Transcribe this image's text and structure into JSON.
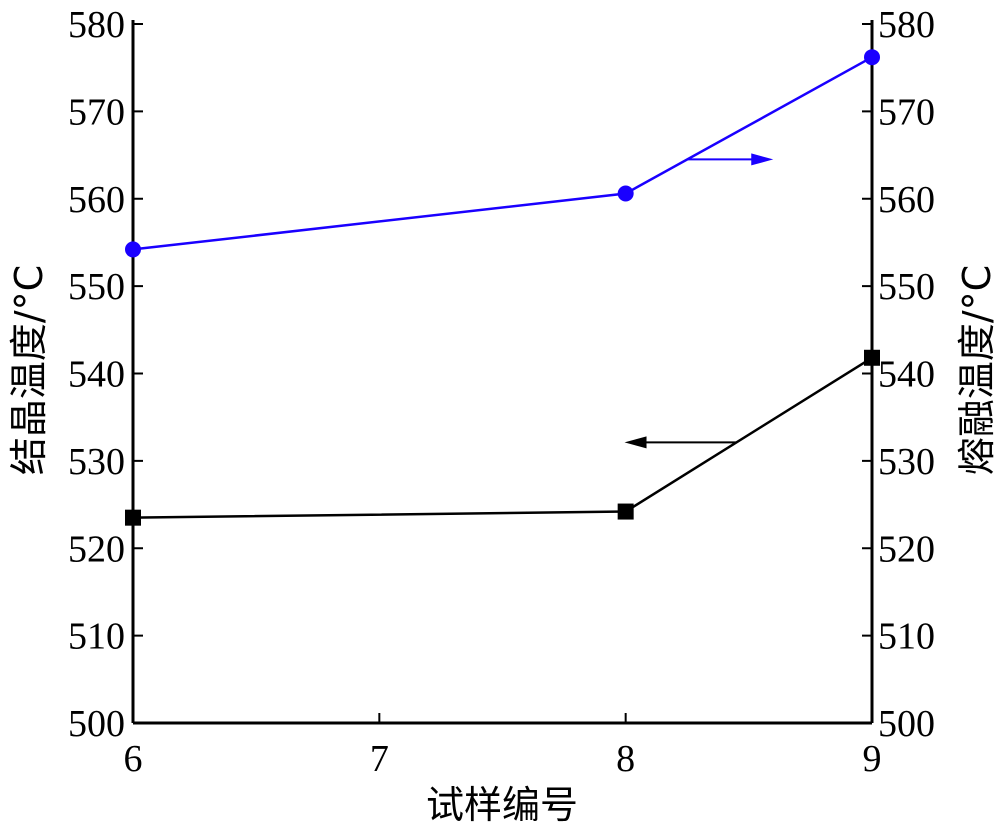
{
  "chart_data": {
    "type": "line",
    "xlabel": "试样编号",
    "ylabel_left": "结晶温度/°C",
    "ylabel_right": "熔融温度/°C",
    "xlim": [
      6,
      9
    ],
    "ylim": [
      500,
      580
    ],
    "xticks": [
      6,
      7,
      8,
      9
    ],
    "yticks": [
      500,
      510,
      520,
      530,
      540,
      550,
      560,
      570,
      580
    ],
    "grid": false,
    "series": [
      {
        "axis": "left",
        "marker": "square",
        "color": "#000000",
        "x": [
          6,
          8,
          9
        ],
        "values": [
          523.5,
          524.2,
          541.8
        ]
      },
      {
        "axis": "right",
        "marker": "circle",
        "color": "#1a00ff",
        "x": [
          6,
          8,
          9
        ],
        "values": [
          554.2,
          560.6,
          576.2
        ]
      }
    ],
    "annotations": [
      {
        "type": "arrow",
        "direction": "left",
        "axis_series": "left",
        "color": "#000000"
      },
      {
        "type": "arrow",
        "direction": "right",
        "axis_series": "right",
        "color": "#1a00ff"
      }
    ]
  }
}
